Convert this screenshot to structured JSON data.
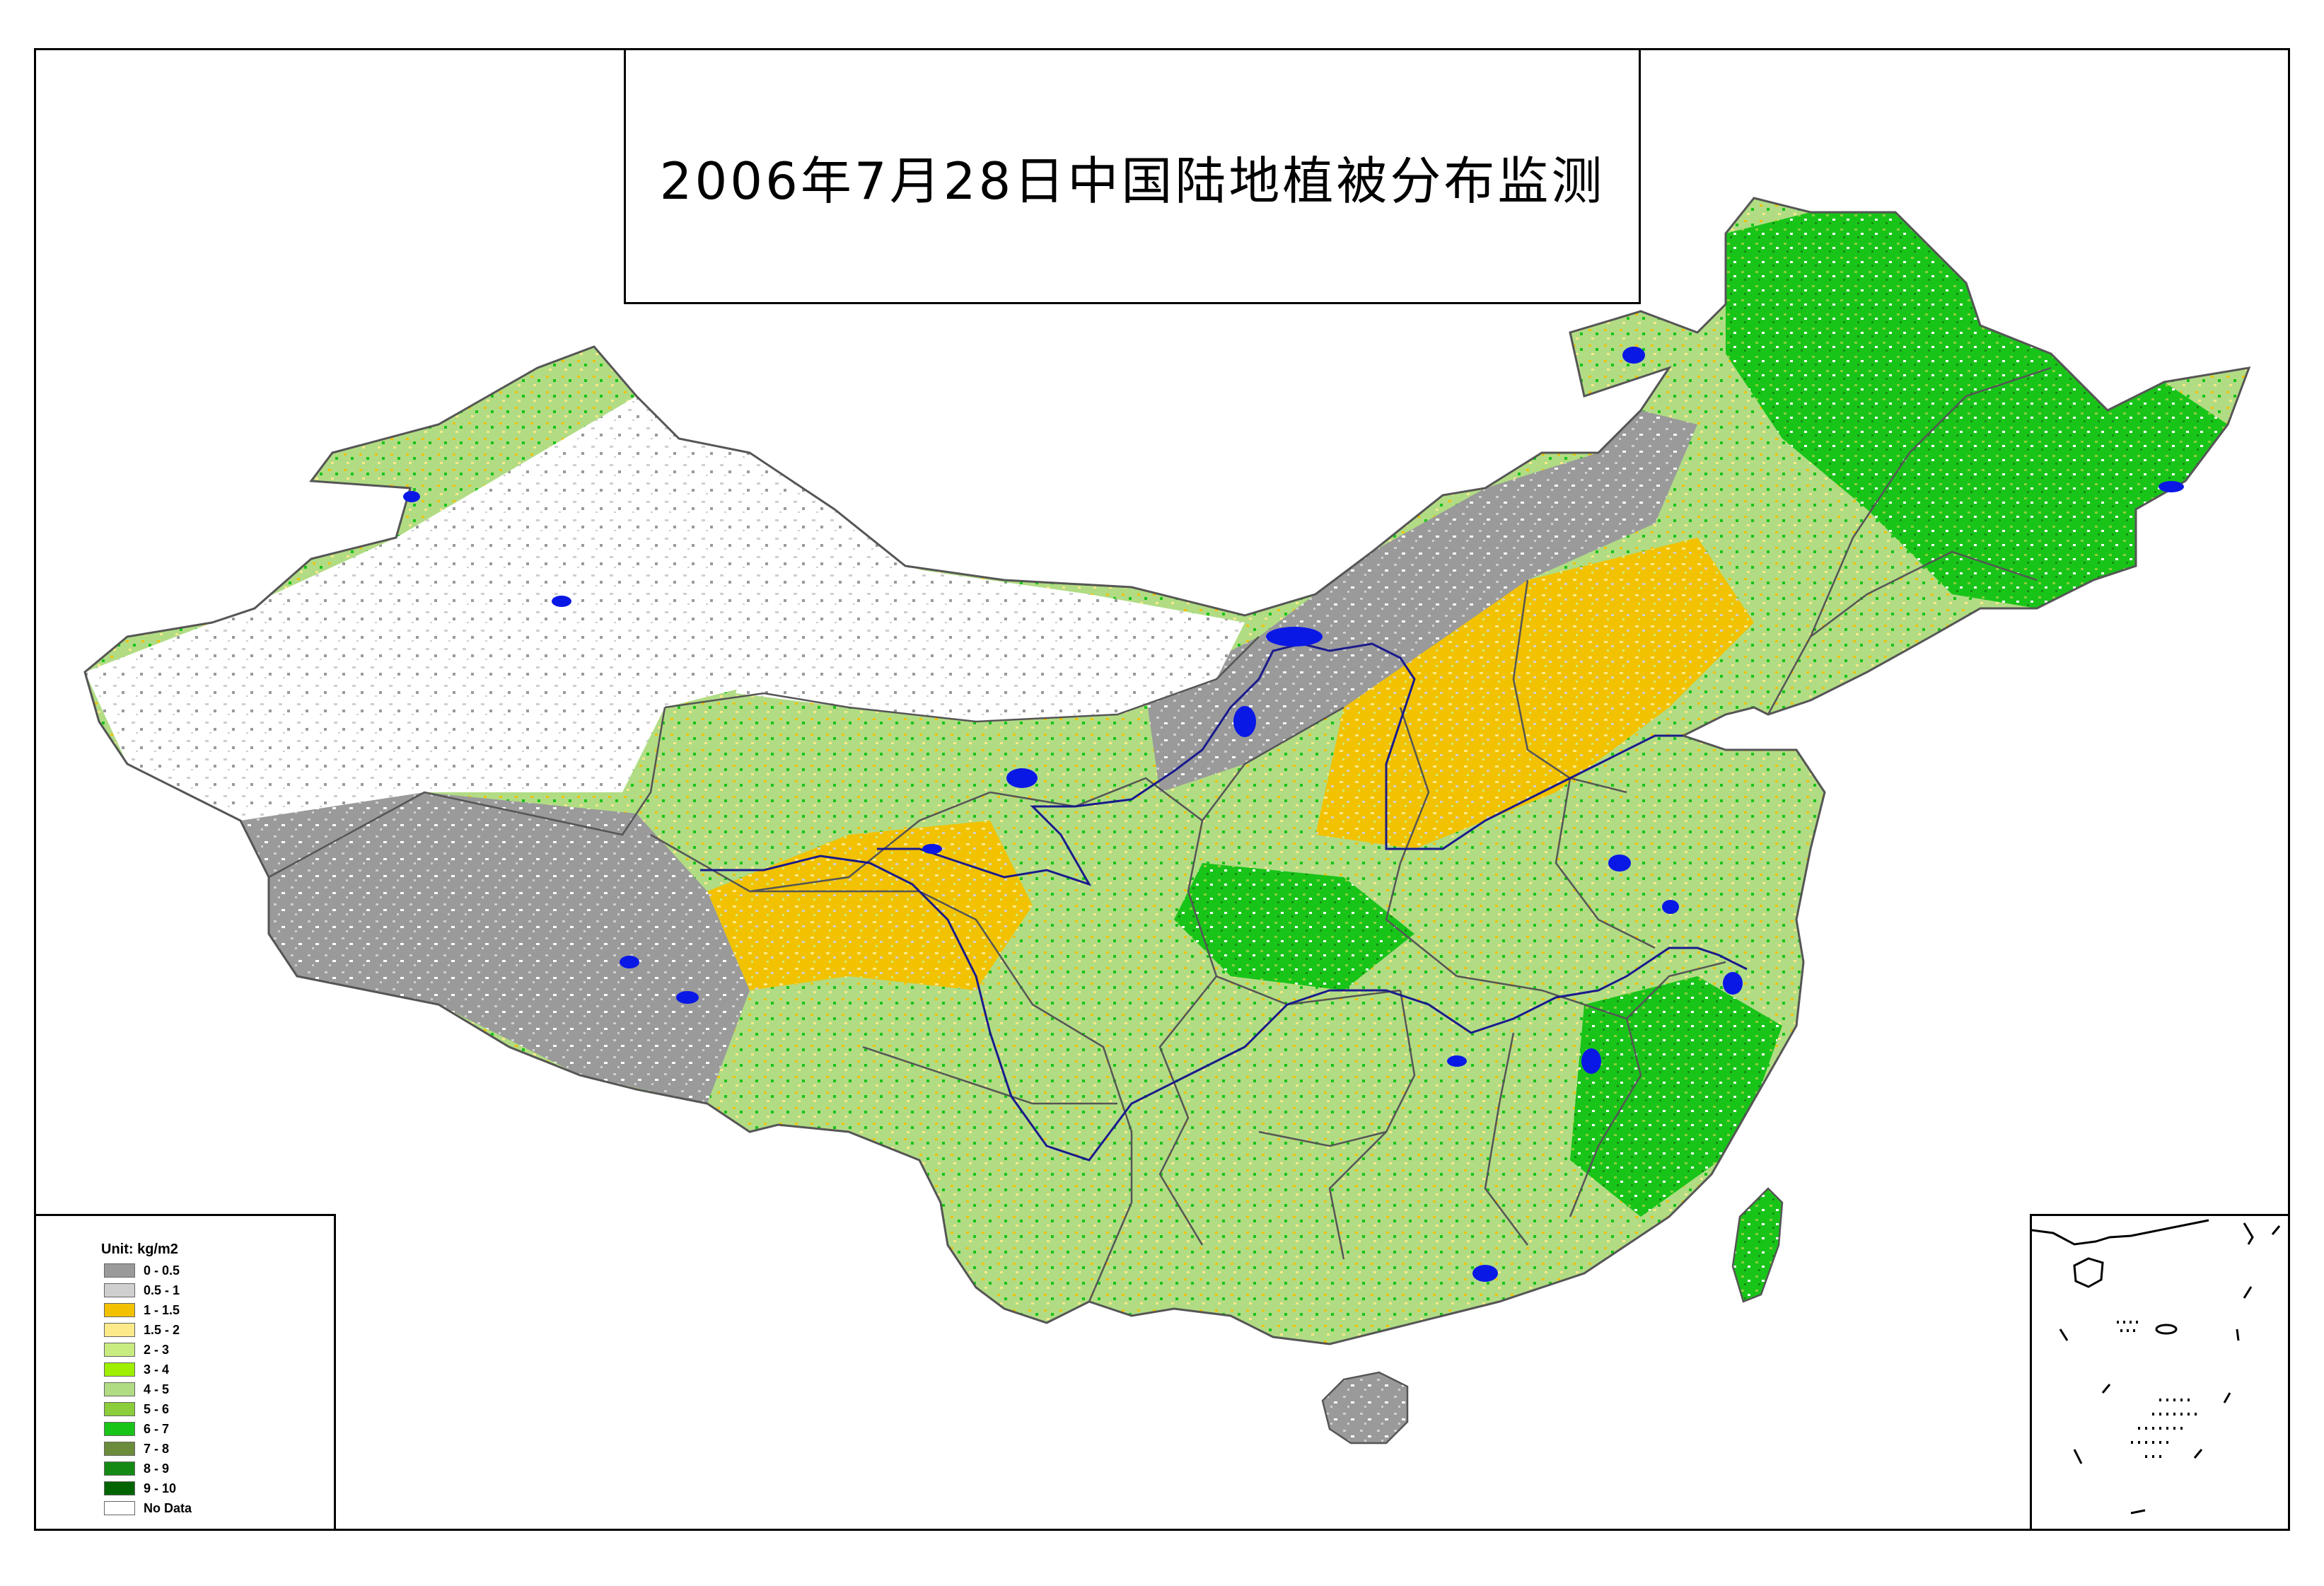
{
  "title": "2006年7月28日中国陆地植被分布监测",
  "legend": {
    "title": "Unit: kg/m2",
    "items": [
      {
        "label": "0 - 0.5",
        "color": "#9a9a9a"
      },
      {
        "label": "0.5 - 1",
        "color": "#cfcfcf"
      },
      {
        "label": "1 - 1.5",
        "color": "#f2c200"
      },
      {
        "label": "1.5 - 2",
        "color": "#fbe98a"
      },
      {
        "label": "2 - 3",
        "color": "#c9ec80"
      },
      {
        "label": "3 - 4",
        "color": "#9ef000"
      },
      {
        "label": "4 - 5",
        "color": "#b1dc84"
      },
      {
        "label": "5 - 6",
        "color": "#8ccd3c"
      },
      {
        "label": "6 - 7",
        "color": "#19c419"
      },
      {
        "label": "7 - 8",
        "color": "#6b8c3a"
      },
      {
        "label": "8 - 9",
        "color": "#148a14"
      },
      {
        "label": "9 - 10",
        "color": "#006400"
      },
      {
        "label": "No Data",
        "color": "#ffffff"
      }
    ]
  },
  "colors": {
    "water": "#0a18e6",
    "river": "#1a1a8c",
    "border": "#555555"
  }
}
